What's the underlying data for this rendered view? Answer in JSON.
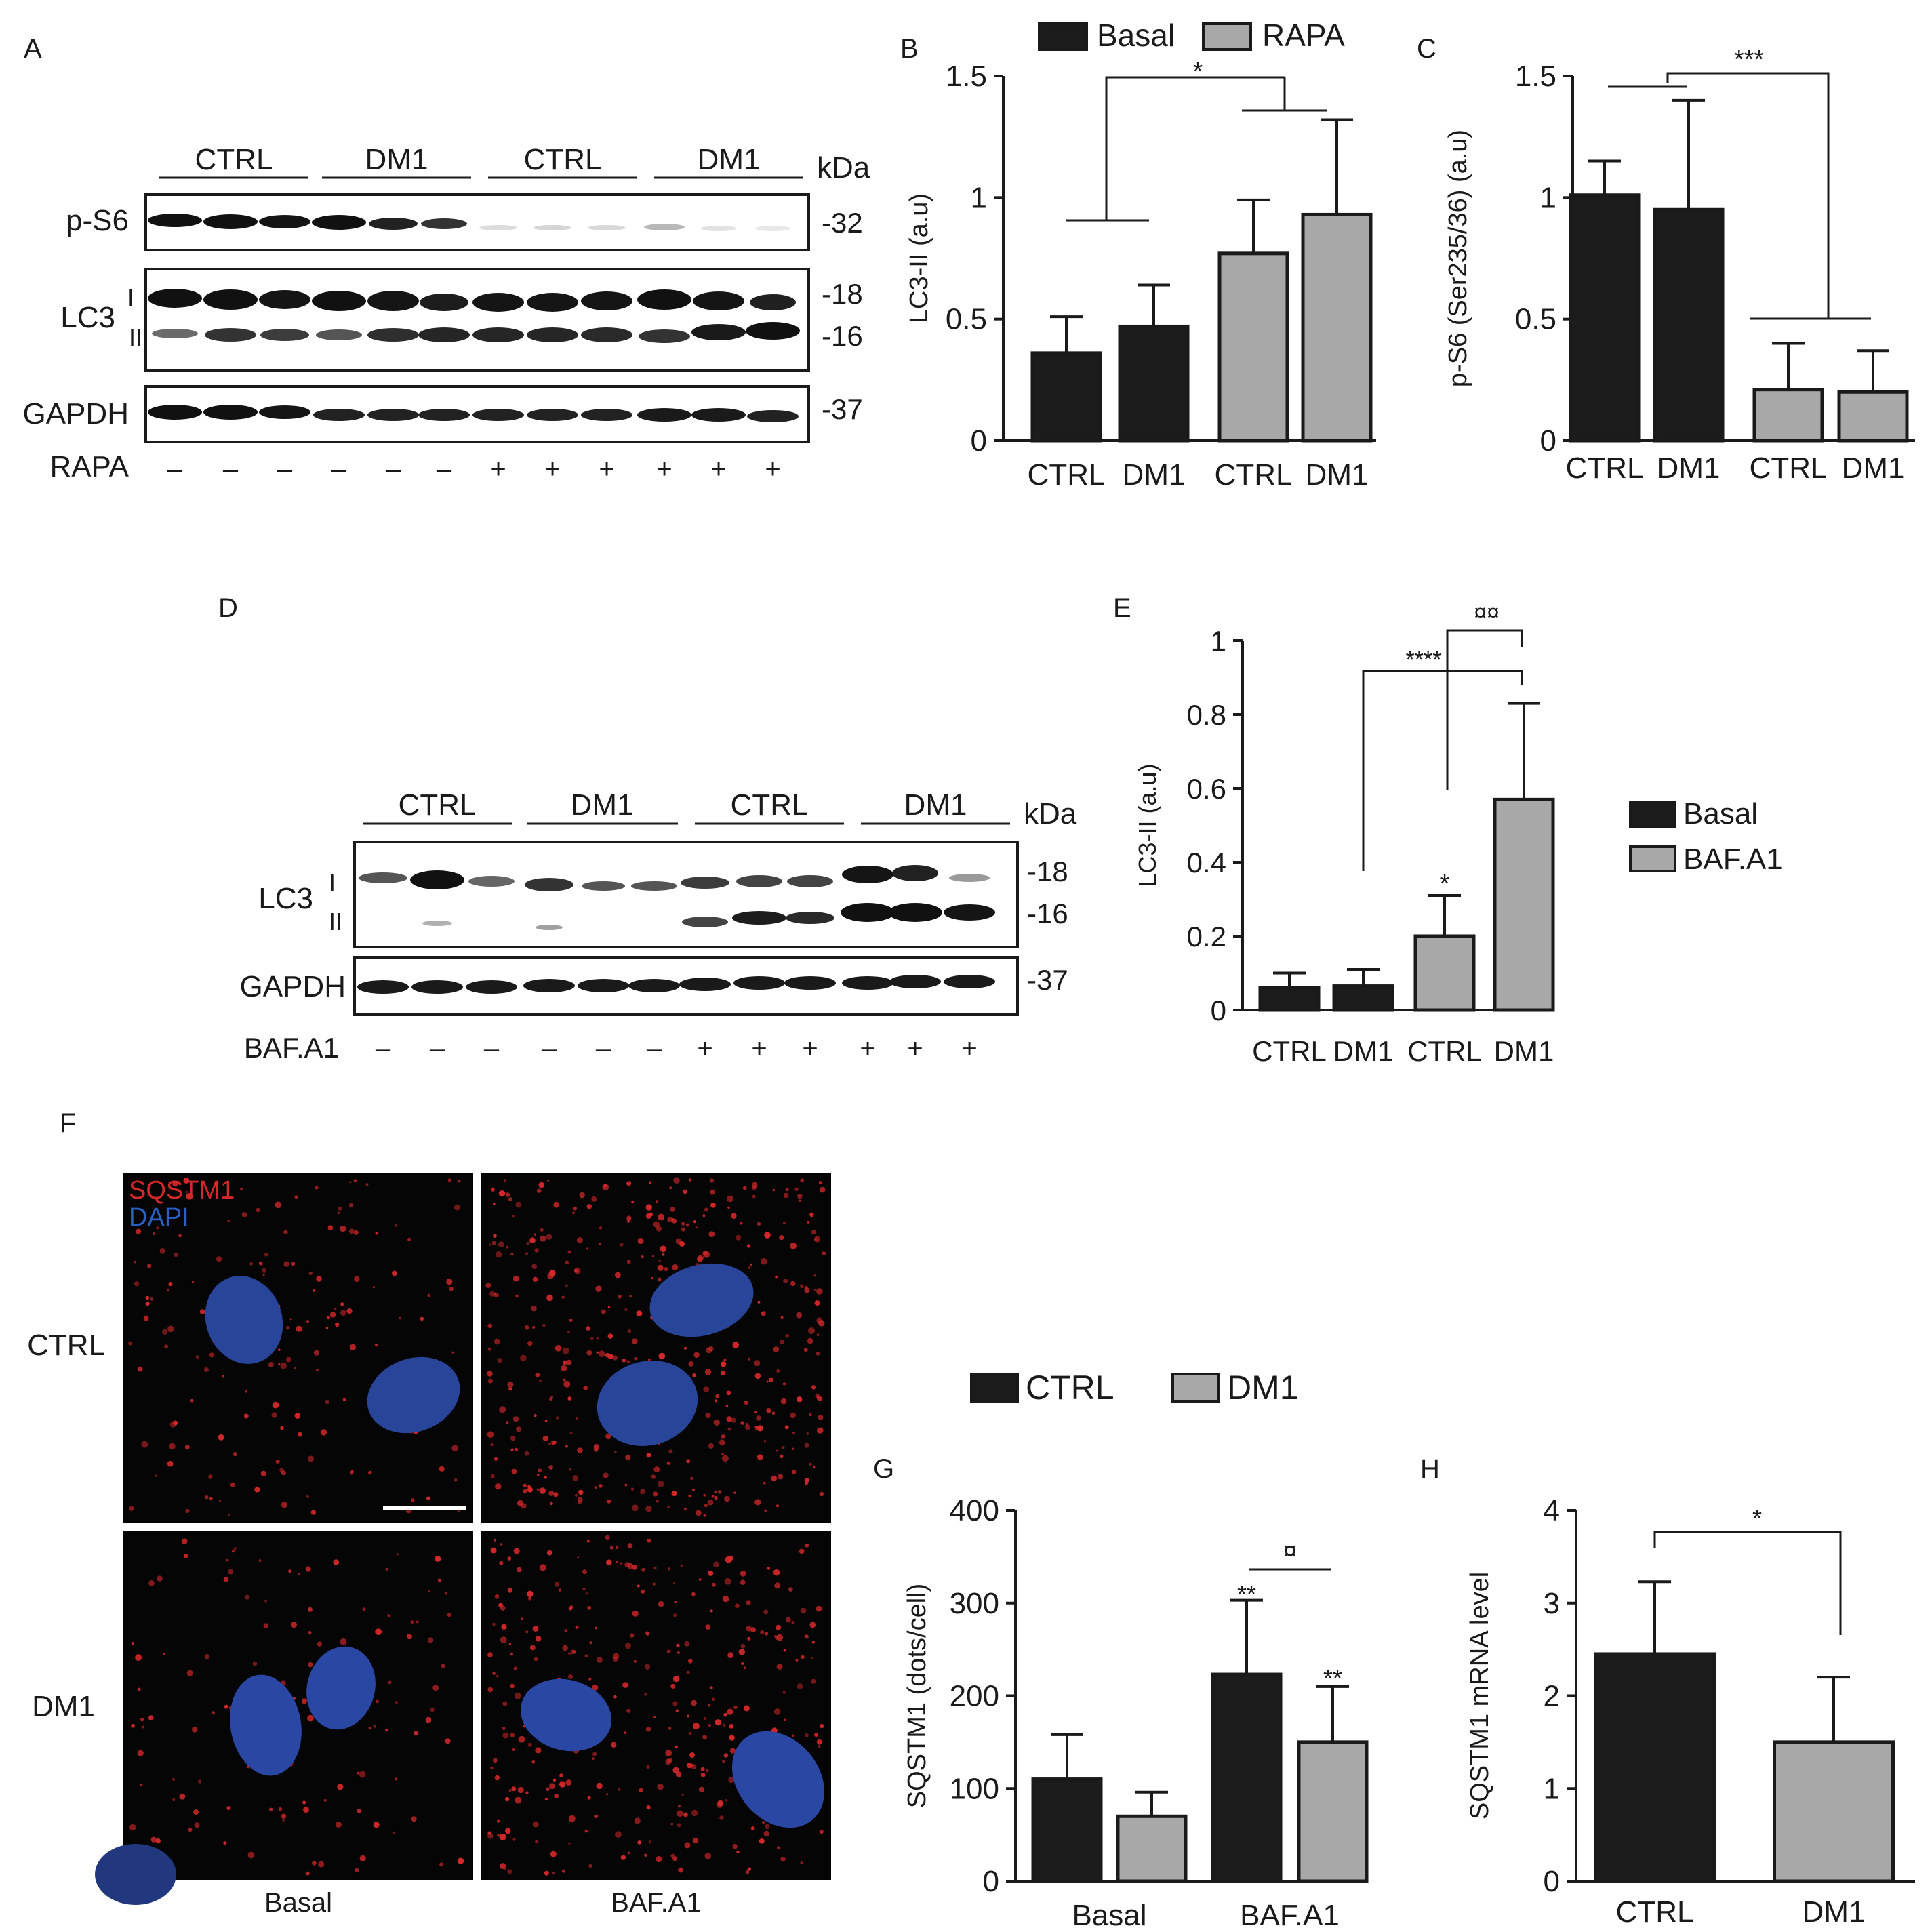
{
  "panels": {
    "A": {
      "letter": "A",
      "group_labels": [
        "CTRL",
        "DM1",
        "CTRL",
        "DM1"
      ],
      "unit": "kDa",
      "blots": [
        {
          "label": "p-S6",
          "markers": [
            "-32"
          ]
        },
        {
          "label": "LC3",
          "bands": [
            "I",
            "II"
          ],
          "markers": [
            "-18",
            "-16"
          ]
        },
        {
          "label": "GAPDH",
          "markers": [
            "-37"
          ]
        }
      ],
      "treatment_label": "RAPA",
      "treatment_signs": [
        "–",
        "–",
        "–",
        "–",
        "–",
        "–",
        "+",
        "+",
        "+",
        "+",
        "+",
        "+"
      ]
    },
    "D": {
      "letter": "D",
      "group_labels": [
        "CTRL",
        "DM1",
        "CTRL",
        "DM1"
      ],
      "unit": "kDa",
      "blots": [
        {
          "label": "LC3",
          "bands": [
            "I",
            "II"
          ],
          "markers": [
            "-18",
            "-16"
          ]
        },
        {
          "label": "GAPDH",
          "markers": [
            "-37"
          ]
        }
      ],
      "treatment_label": "BAF.A1",
      "treatment_signs": [
        "–",
        "–",
        "–",
        "–",
        "–",
        "–",
        "+",
        "+",
        "+",
        "+",
        "+",
        "+"
      ]
    },
    "F": {
      "letter": "F",
      "channels": [
        {
          "name": "SQSTM1",
          "color": "#d4282a"
        },
        {
          "name": "DAPI",
          "color": "#2a5fc4"
        }
      ],
      "row_labels": [
        "CTRL",
        "DM1"
      ],
      "col_labels": [
        "Basal",
        "BAF.A1"
      ]
    }
  },
  "chart_data": [
    {
      "panel": "B",
      "type": "bar",
      "categories": [
        "CTRL",
        "DM1",
        "CTRL",
        "DM1"
      ],
      "series": [
        {
          "name": "Basal",
          "color": "#1c1c1c",
          "indices": [
            0,
            1
          ]
        },
        {
          "name": "RAPA",
          "color": "#a8a8a8",
          "indices": [
            2,
            3
          ]
        }
      ],
      "values": [
        0.36,
        0.47,
        0.77,
        0.93
      ],
      "errors": [
        0.15,
        0.17,
        0.22,
        0.39
      ],
      "ylabel": "LC3-II (a.u)",
      "ylim": [
        0,
        1.5
      ],
      "yticks": [
        "0",
        "0.5",
        "1",
        "1.5"
      ],
      "legend": "top",
      "annotations": [
        "*"
      ]
    },
    {
      "panel": "C",
      "type": "bar",
      "categories": [
        "CTRL",
        "DM1",
        "CTRL",
        "DM1"
      ],
      "series": [
        {
          "name": "Basal",
          "color": "#1c1c1c",
          "indices": [
            0,
            1
          ]
        },
        {
          "name": "RAPA",
          "color": "#a8a8a8",
          "indices": [
            2,
            3
          ]
        }
      ],
      "values": [
        1.01,
        0.95,
        0.21,
        0.2
      ],
      "errors": [
        0.14,
        0.45,
        0.19,
        0.17
      ],
      "ylabel": "p-S6 (Ser235/36) (a.u)",
      "ylim": [
        0,
        1.5
      ],
      "yticks": [
        "0",
        "0.5",
        "1",
        "1.5"
      ],
      "annotations": [
        "***"
      ]
    },
    {
      "panel": "E",
      "type": "bar",
      "categories": [
        "CTRL",
        "DM1",
        "CTRL",
        "DM1"
      ],
      "series": [
        {
          "name": "Basal",
          "color": "#1c1c1c",
          "indices": [
            0,
            1
          ]
        },
        {
          "name": "BAF.A1",
          "color": "#a8a8a8",
          "indices": [
            2,
            3
          ]
        }
      ],
      "values": [
        0.06,
        0.065,
        0.2,
        0.57
      ],
      "errors": [
        0.04,
        0.045,
        0.11,
        0.26
      ],
      "ylabel": "LC3-II (a.u)",
      "ylim": [
        0,
        1
      ],
      "yticks": [
        "0",
        "0.2",
        "0.4",
        "0.6",
        "0.8",
        "1"
      ],
      "legend": "right",
      "annotations": [
        "¤¤",
        "****",
        "*"
      ]
    },
    {
      "panel": "G",
      "type": "bar",
      "categories": [
        "Basal",
        "BAF.A1"
      ],
      "series": [
        {
          "name": "CTRL",
          "color": "#1c1c1c",
          "values": [
            110,
            223
          ],
          "errors": [
            48,
            80
          ]
        },
        {
          "name": "DM1",
          "color": "#a8a8a8",
          "values": [
            70,
            150
          ],
          "errors": [
            26,
            60
          ]
        }
      ],
      "ylabel": "SQSTM1 (dots/cell)",
      "ylim": [
        0,
        400
      ],
      "yticks": [
        "0",
        "100",
        "200",
        "300",
        "400"
      ],
      "legend": "top",
      "annotations": [
        "¤",
        "**",
        "**"
      ]
    },
    {
      "panel": "H",
      "type": "bar",
      "categories": [
        "CTRL",
        "DM1"
      ],
      "series": [
        {
          "name": "CTRL",
          "color": "#1c1c1c",
          "indices": [
            0
          ]
        },
        {
          "name": "DM1",
          "color": "#a8a8a8",
          "indices": [
            1
          ]
        }
      ],
      "values": [
        2.45,
        1.5
      ],
      "errors": [
        0.78,
        0.7
      ],
      "ylabel": "SQSTM1 mRNA level",
      "ylim": [
        0,
        4
      ],
      "yticks": [
        "0",
        "1",
        "2",
        "3",
        "4"
      ],
      "annotations": [
        "*"
      ]
    }
  ]
}
